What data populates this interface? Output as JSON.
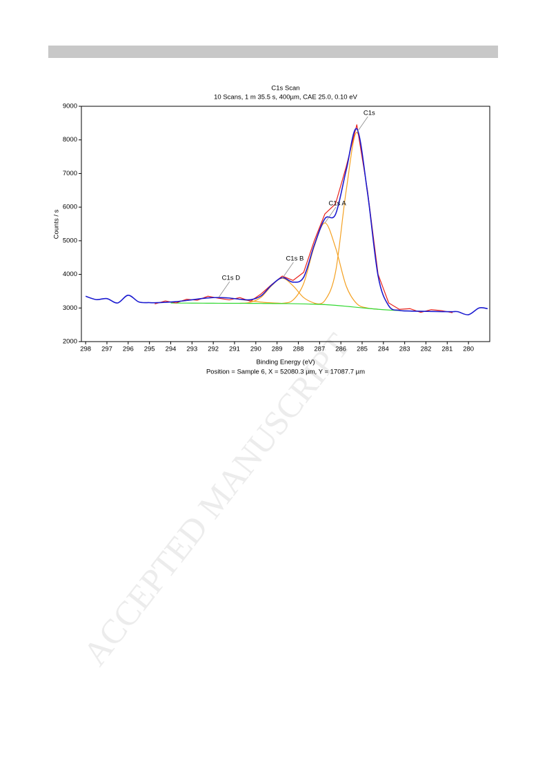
{
  "watermark": "ACCEPTED MANUSCRIPT",
  "chart_data": {
    "type": "line",
    "title": "C1s Scan",
    "subtitle": "10 Scans,  1 m 35.5 s,  400µm,  CAE 25.0,  0.10 eV",
    "x_label": "Binding Energy (eV)",
    "y_label": "Counts / s",
    "footer": "Position = Sample 6, X = 52080.3 µm, Y = 17087.7 µm",
    "xlim": [
      298.2,
      279.0
    ],
    "ylim": [
      2000,
      9000
    ],
    "xticks": [
      298,
      297,
      296,
      295,
      294,
      293,
      292,
      291,
      290,
      289,
      288,
      287,
      286,
      285,
      284,
      283,
      282,
      281,
      280
    ],
    "yticks": [
      2000,
      3000,
      4000,
      5000,
      6000,
      7000,
      8000,
      9000
    ],
    "series": [
      {
        "color": "#e8201a",
        "smooth": false,
        "x": [
          294.75,
          294.25,
          293.75,
          293.25,
          292.75,
          292.25,
          291.75,
          291.25,
          290.75,
          290.25,
          289.75,
          289.25,
          288.75,
          288.25,
          287.75,
          287.25,
          286.75,
          286.25,
          285.75,
          285.25,
          284.75,
          284.25,
          283.75,
          283.25,
          282.75,
          282.25,
          281.75,
          281.25,
          280.75
        ],
        "values": [
          3120,
          3210,
          3150,
          3260,
          3230,
          3350,
          3290,
          3240,
          3310,
          3200,
          3420,
          3700,
          3950,
          3820,
          4060,
          5000,
          5800,
          6100,
          7200,
          8450,
          6500,
          4000,
          3150,
          2960,
          2980,
          2870,
          2950,
          2920,
          2860
        ]
      },
      {
        "color": "#1a1ad0",
        "smooth": true,
        "x": [
          298.0,
          297.5,
          297.0,
          296.5,
          296.0,
          295.5,
          295.0,
          294.75,
          294.25,
          293.75,
          293.25,
          292.75,
          292.25,
          291.75,
          291.25,
          290.75,
          290.25,
          289.75,
          289.25,
          288.75,
          288.25,
          287.75,
          287.25,
          286.75,
          286.25,
          285.75,
          285.25,
          284.75,
          284.25,
          283.75,
          283.25,
          282.75,
          282.25,
          281.75,
          281.25,
          280.75,
          280.5,
          280.0,
          279.5,
          279.1
        ],
        "values": [
          3350,
          3250,
          3280,
          3150,
          3380,
          3180,
          3160,
          3157,
          3168,
          3189,
          3224,
          3264,
          3299,
          3311,
          3296,
          3260,
          3246,
          3363,
          3686,
          3902,
          3769,
          3915,
          4871,
          5658,
          5789,
          7097,
          8327,
          6441,
          3955,
          3066,
          2929,
          2910,
          2902,
          2897,
          2892,
          2889,
          2890,
          2800,
          3000,
          2980
        ]
      },
      {
        "color": "#2fd82f",
        "smooth": true,
        "x": [
          294.0,
          293.5,
          293.0,
          292.5,
          292.0,
          291.5,
          291.0,
          290.5,
          290.0,
          289.5,
          289.0,
          288.5,
          288.0,
          287.5,
          287.0,
          286.5,
          286.0,
          285.5,
          285.0,
          284.5,
          284.0,
          283.5,
          283.0,
          282.5,
          282.0
        ],
        "values": [
          3148,
          3146,
          3145,
          3143,
          3142,
          3140,
          3140,
          3138,
          3136,
          3134,
          3132,
          3130,
          3125,
          3118,
          3108,
          3090,
          3065,
          3035,
          3005,
          2975,
          2950,
          2930,
          2915,
          2905,
          2900
        ]
      },
      {
        "name": "C1s",
        "color": "#f4a020",
        "smooth": true,
        "x": [
          287.25,
          286.75,
          286.25,
          285.75,
          285.25,
          284.75,
          284.25,
          283.75,
          283.25
        ],
        "values": [
          3120,
          3225,
          4071,
          6492,
          8220,
          6432,
          3955,
          3066,
          2929
        ]
      },
      {
        "name": "C1s A",
        "color": "#f4a020",
        "smooth": true,
        "x": [
          289.25,
          288.75,
          288.25,
          287.75,
          287.25,
          286.75,
          286.25,
          285.75,
          285.25,
          284.75,
          284.25
        ],
        "values": [
          3133,
          3140,
          3235,
          3727,
          4831,
          5530,
          4796,
          3655,
          3127,
          2999,
          2962
        ]
      },
      {
        "name": "C1s B",
        "color": "#f4a020",
        "smooth": true,
        "x": [
          290.75,
          290.25,
          289.75,
          289.25,
          288.75,
          288.25,
          287.75,
          287.25,
          286.75
        ],
        "values": [
          3140,
          3168,
          3321,
          3667,
          3886,
          3662,
          3310,
          3146,
          3102
        ]
      },
      {
        "name": "C1s D",
        "color": "#f4a020",
        "smooth": true,
        "x": [
          294.75,
          294.25,
          293.75,
          293.25,
          292.75,
          292.25,
          291.75,
          291.25,
          290.75,
          290.25,
          289.75,
          289.25,
          288.75
        ],
        "values": [
          3157,
          3168,
          3189,
          3224,
          3264,
          3299,
          3311,
          3296,
          3257,
          3213,
          3175,
          3152,
          3138
        ]
      }
    ]
  }
}
